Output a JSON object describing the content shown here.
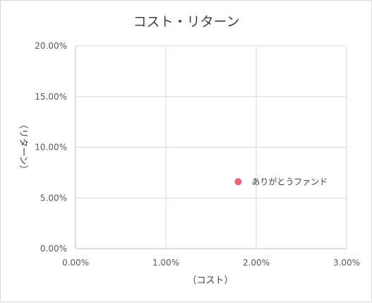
{
  "chart_data": {
    "type": "scatter",
    "title": "コスト・リターン",
    "xlabel": "（コスト）",
    "ylabel": "（リターン）",
    "xlim": [
      0,
      0.03
    ],
    "ylim": [
      0,
      0.2
    ],
    "x_ticks": [
      {
        "value": 0.0,
        "label": "0.00%"
      },
      {
        "value": 0.01,
        "label": "1.00%"
      },
      {
        "value": 0.02,
        "label": "2.00%"
      },
      {
        "value": 0.03,
        "label": "3.00%"
      }
    ],
    "y_ticks": [
      {
        "value": 0.0,
        "label": "0.00%"
      },
      {
        "value": 0.05,
        "label": "5.00%"
      },
      {
        "value": 0.1,
        "label": "10.00%"
      },
      {
        "value": 0.15,
        "label": "15.00%"
      },
      {
        "value": 0.2,
        "label": "20.00%"
      }
    ],
    "grid": true,
    "points": [
      {
        "label": "ありがとうファンド",
        "x": 0.018,
        "y": 0.066,
        "color": "#e8637a"
      }
    ]
  }
}
